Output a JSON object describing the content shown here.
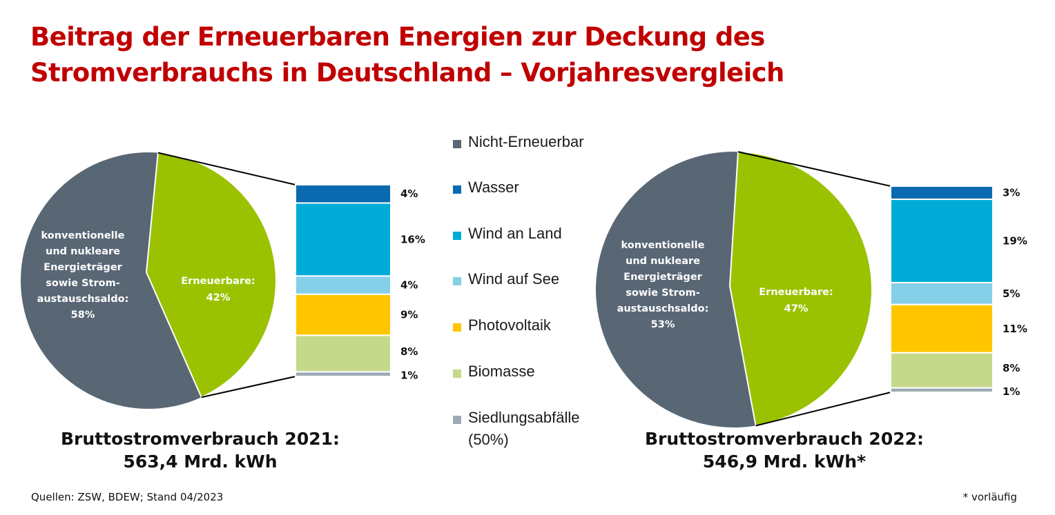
{
  "title": {
    "line1": "Beitrag der Erneuerbaren Energien zur Deckung des",
    "line2": "Stromverbrauchs in Deutschland – Vorjahresvergleich"
  },
  "colors": {
    "nicht_erneuerbar": "#596775",
    "erneuerbare": "#9bc200",
    "wasser": "#0a6aaf",
    "wind_land": "#00acd7",
    "wind_see": "#85cfe8",
    "photovoltaik": "#ffc600",
    "biomasse": "#c4d98a",
    "siedlung": "#9eabb6",
    "title": "#c00000"
  },
  "legend": [
    {
      "label": "Nicht-Erneuerbar",
      "color": "#596775"
    },
    {
      "label": "Wasser",
      "color": "#0a6aaf"
    },
    {
      "label": "Wind an Land",
      "color": "#00acd7"
    },
    {
      "label": "Wind auf See",
      "color": "#85cfe8"
    },
    {
      "label": "Photovoltaik",
      "color": "#ffc600"
    },
    {
      "label": "Biomasse",
      "color": "#c4d98a"
    },
    {
      "label": "Siedlungsabfälle",
      "label2": "(50%)",
      "color": "#9eabb6"
    }
  ],
  "chart_data": [
    {
      "type": "pie",
      "year": "2021",
      "slices": [
        {
          "name": "konventionelle und nukleare Energieträger sowie Strom-austauschsaldo",
          "value": 58
        },
        {
          "name": "Erneuerbare",
          "value": 42
        }
      ],
      "slice_labels": {
        "conventional": [
          "konventionelle",
          "und nukleare",
          "Energieträger",
          "sowie Strom-",
          "austauschsaldo:",
          "58%"
        ],
        "renewable": [
          "Erneuerbare:",
          "42%"
        ]
      },
      "breakdown": {
        "type": "bar",
        "stacked": true,
        "categories": [
          "Wasser",
          "Wind an Land",
          "Wind auf See",
          "Photovoltaik",
          "Biomasse",
          "Siedlungsabfälle"
        ],
        "values": [
          4,
          16,
          4,
          9,
          8,
          1
        ],
        "labels": [
          "4%",
          "16%",
          "4%",
          "9%",
          "8%",
          "1%"
        ]
      },
      "caption_line1": "Bruttostromverbrauch 2021:",
      "caption_line2": "563,4 Mrd. kWh"
    },
    {
      "type": "pie",
      "year": "2022",
      "slices": [
        {
          "name": "konventionelle und nukleare Energieträger sowie Strom-austauschsaldo",
          "value": 53
        },
        {
          "name": "Erneuerbare",
          "value": 47
        }
      ],
      "slice_labels": {
        "conventional": [
          "konventionelle",
          "und nukleare",
          "Energieträger",
          "sowie Strom-",
          "austauschsaldo:",
          "53%"
        ],
        "renewable": [
          "Erneuerbare:",
          "47%"
        ]
      },
      "breakdown": {
        "type": "bar",
        "stacked": true,
        "categories": [
          "Wasser",
          "Wind an Land",
          "Wind auf See",
          "Photovoltaik",
          "Biomasse",
          "Siedlungsabfälle"
        ],
        "values": [
          3,
          19,
          5,
          11,
          8,
          1
        ],
        "labels": [
          "3%",
          "19%",
          "5%",
          "11%",
          "8%",
          "1%"
        ]
      },
      "caption_line1": "Bruttostromverbrauch 2022:",
      "caption_line2": "546,9 Mrd. kWh*"
    }
  ],
  "footer": {
    "sources": "Quellen: ZSW, BDEW; Stand 04/2023",
    "note": "* vorläufig"
  }
}
